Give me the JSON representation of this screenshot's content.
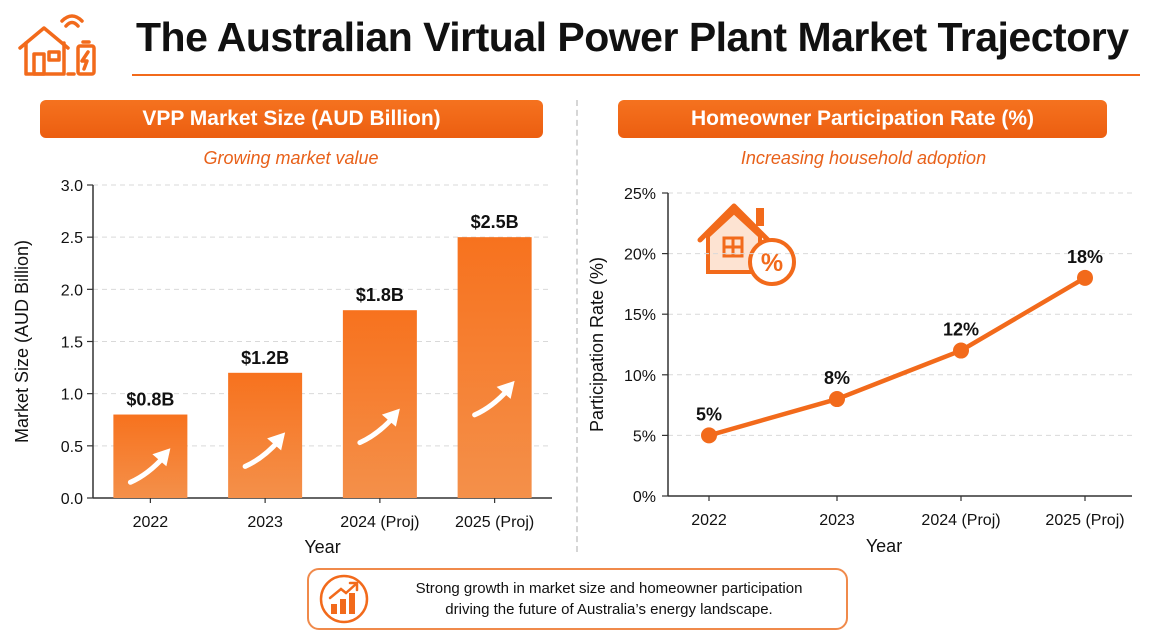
{
  "page": {
    "title": "The Australian Virtual Power Plant Market Trajectory",
    "logo_icon": "smart-home-battery-icon",
    "accent_color": "#f26a1b"
  },
  "left_panel": {
    "heading": "VPP Market Size (AUD Billion)",
    "subtitle": "Growing market value"
  },
  "right_panel": {
    "heading": "Homeowner Participation Rate (%)",
    "subtitle": "Increasing household adoption",
    "illustration_icon": "house-percent-icon"
  },
  "callout": {
    "icon": "rising-bar-chart-icon",
    "line1": "Strong growth in market size and homeowner participation",
    "line2": "driving the future of Australia’s energy landscape."
  },
  "chart_data": [
    {
      "type": "bar",
      "title": "VPP Market Size (AUD Billion)",
      "subtitle": "Growing market value",
      "categories": [
        "2022",
        "2023",
        "2024 (Proj)",
        "2025 (Proj)"
      ],
      "values": [
        0.8,
        1.2,
        1.8,
        2.5
      ],
      "data_labels": [
        "$0.8B",
        "$1.2B",
        "$1.8B",
        "$2.5B"
      ],
      "xlabel": "Year",
      "ylabel": "Market Size (AUD Billion)",
      "ylim": [
        0,
        3.0
      ],
      "yticks": [
        "0.0",
        "0.5",
        "1.0",
        "1.5",
        "2.0",
        "2.5",
        "3.0"
      ],
      "grid": true,
      "bar_color": "#f26a1b",
      "bar_icon": "up-arrow-icon"
    },
    {
      "type": "line",
      "title": "Homeowner Participation Rate (%)",
      "subtitle": "Increasing household adoption",
      "categories": [
        "2022",
        "2023",
        "2024 (Proj)",
        "2025 (Proj)"
      ],
      "values": [
        5,
        8,
        12,
        18
      ],
      "data_labels": [
        "5%",
        "8%",
        "12%",
        "18%"
      ],
      "xlabel": "Year",
      "ylabel": "Participation Rate (%)",
      "ylim": [
        0,
        25
      ],
      "yticks": [
        "0%",
        "5%",
        "10%",
        "15%",
        "20%",
        "25%"
      ],
      "grid": true,
      "line_color": "#f26a1b"
    }
  ]
}
